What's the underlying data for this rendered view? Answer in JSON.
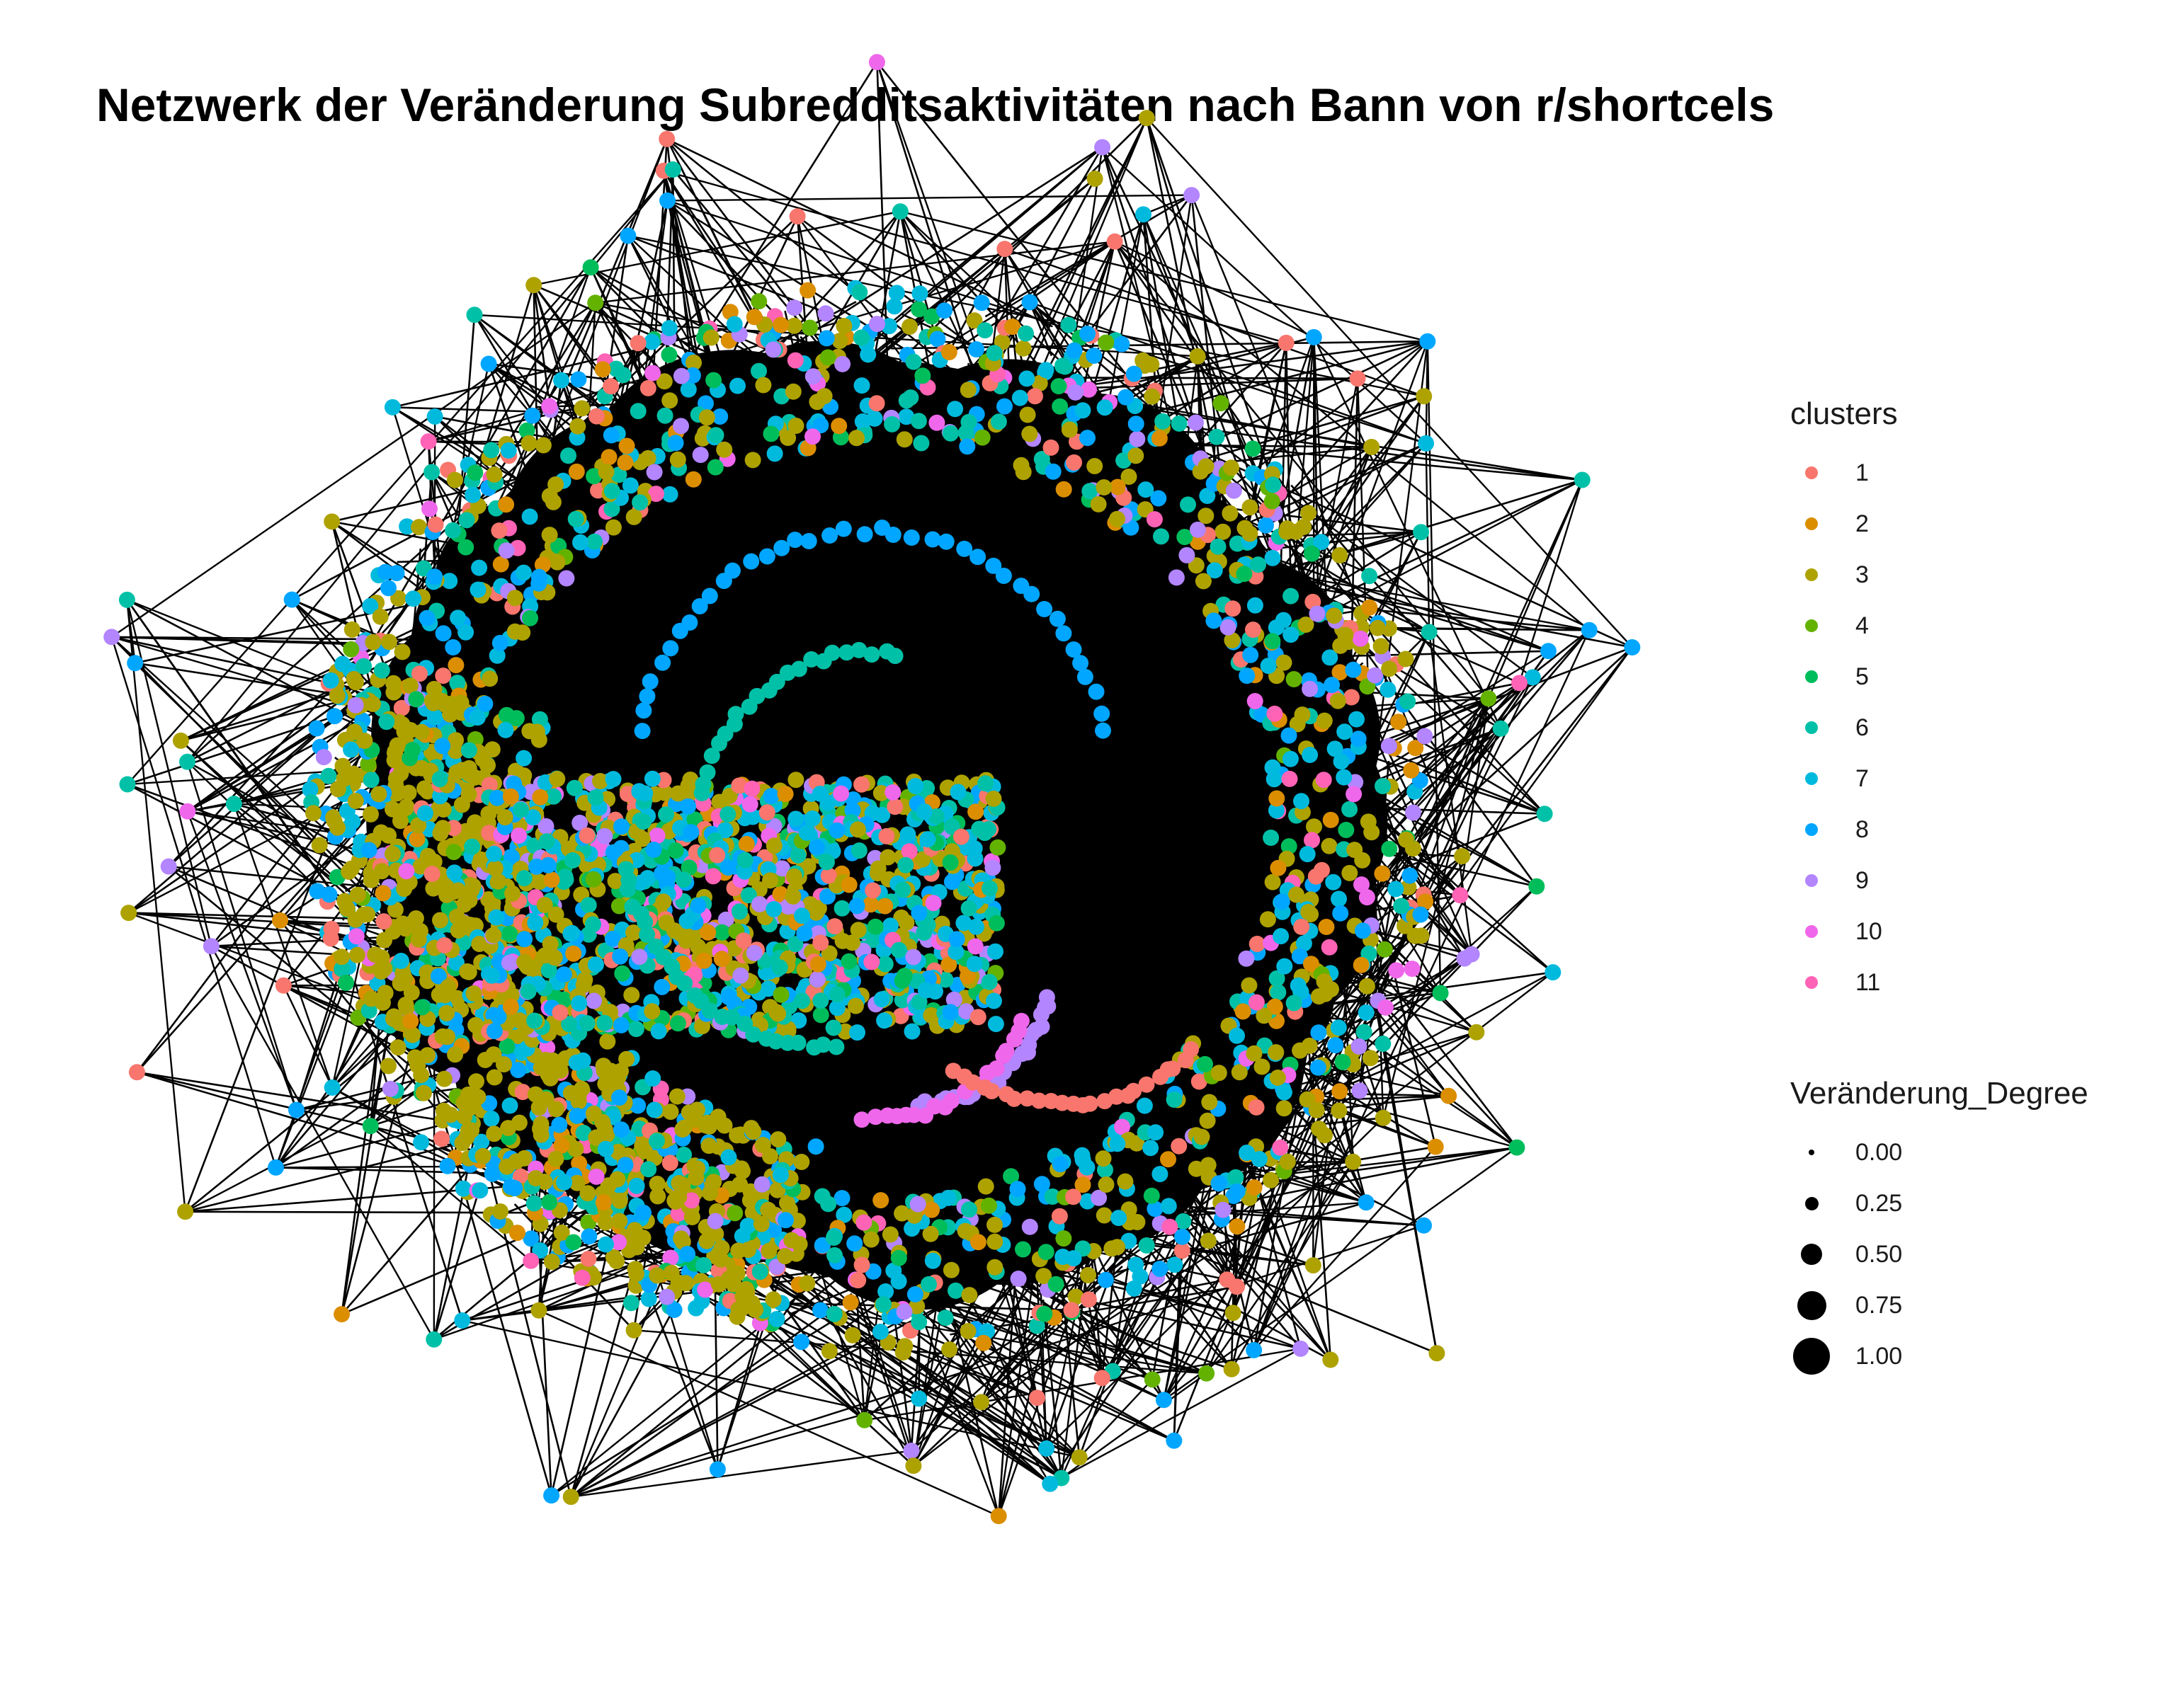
{
  "title": "Netzwerk der Veränderung Subredditsaktivitäten nach Bann von r/shortcels",
  "legend_clusters": {
    "title": "clusters",
    "items": [
      {
        "label": "1",
        "color": "#F8766D"
      },
      {
        "label": "2",
        "color": "#DB8E00"
      },
      {
        "label": "3",
        "color": "#AEA200"
      },
      {
        "label": "4",
        "color": "#64B200"
      },
      {
        "label": "5",
        "color": "#00BD5C"
      },
      {
        "label": "6",
        "color": "#00C1A7"
      },
      {
        "label": "7",
        "color": "#00BADE"
      },
      {
        "label": "8",
        "color": "#00A6FF"
      },
      {
        "label": "9",
        "color": "#B385FF"
      },
      {
        "label": "10",
        "color": "#EF67EB"
      },
      {
        "label": "11",
        "color": "#FF63B6"
      }
    ]
  },
  "legend_size": {
    "title": "Veränderung_Degree",
    "items": [
      {
        "label": "0.00",
        "value": 0.0
      },
      {
        "label": "0.25",
        "value": 0.25
      },
      {
        "label": "0.50",
        "value": 0.5
      },
      {
        "label": "0.75",
        "value": 0.75
      },
      {
        "label": "1.00",
        "value": 1.0
      }
    ]
  },
  "network": {
    "edge_color": "#000000",
    "background_color": "#ffffff"
  }
}
